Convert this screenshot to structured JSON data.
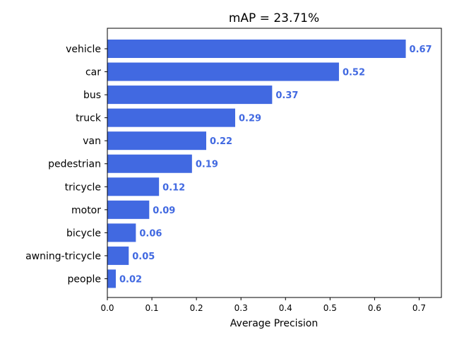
{
  "chart_data": {
    "type": "bar",
    "orientation": "horizontal",
    "title": "mAP = 23.71%",
    "xlabel": "Average Precision",
    "ylabel": "",
    "categories": [
      "vehicle",
      "car",
      "bus",
      "truck",
      "van",
      "pedestrian",
      "tricycle",
      "motor",
      "bicycle",
      "awning-tricycle",
      "people"
    ],
    "values": [
      0.67,
      0.52,
      0.37,
      0.287,
      0.222,
      0.19,
      0.116,
      0.094,
      0.064,
      0.048,
      0.019
    ],
    "value_labels": [
      "0.67",
      "0.52",
      "0.37",
      "0.29",
      "0.22",
      "0.19",
      "0.12",
      "0.09",
      "0.06",
      "0.05",
      "0.02"
    ],
    "xlim": [
      0,
      0.75
    ],
    "xticks": [
      0.0,
      0.1,
      0.2,
      0.3,
      0.4,
      0.5,
      0.6,
      0.7
    ],
    "xtick_labels": [
      "0.0",
      "0.1",
      "0.2",
      "0.3",
      "0.4",
      "0.5",
      "0.6",
      "0.7"
    ],
    "grid": false,
    "legend": "none",
    "colors": {
      "bar": "#4169e1",
      "value_label": "#4169e1",
      "axis": "#000000"
    }
  }
}
